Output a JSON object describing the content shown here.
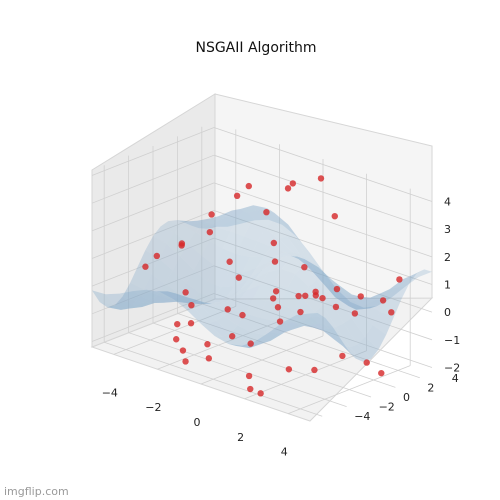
{
  "chart_data": {
    "type": "scatter",
    "title": "NSGAII Algorithm",
    "x_ticks": [
      "−4",
      "−2",
      "0",
      "2",
      "4"
    ],
    "y_ticks": [
      "−4",
      "−2",
      "0",
      "2",
      "4"
    ],
    "z_ticks": [
      "−2",
      "−1",
      "0",
      "1",
      "2",
      "3",
      "4"
    ],
    "xlim": [
      -5,
      5
    ],
    "ylim": [
      -5,
      5
    ],
    "zlim": [
      -2.2,
      4.2
    ],
    "grid": true,
    "surface_color": "#7ea6c8",
    "point_color": "#d62728",
    "points": [
      {
        "x": -4.9,
        "y": -0.8,
        "z": 0.0
      },
      {
        "x": -4.6,
        "y": -0.4,
        "z": 0.4
      },
      {
        "x": -4.3,
        "y": 1.1,
        "z": 0.6
      },
      {
        "x": -3.9,
        "y": 0.4,
        "z": 0.9
      },
      {
        "x": -3.6,
        "y": 2.3,
        "z": 1.7
      },
      {
        "x": -3.1,
        "y": 3.5,
        "z": 2.3
      },
      {
        "x": -2.9,
        "y": 4.1,
        "z": 2.6
      },
      {
        "x": -3.0,
        "y": -0.9,
        "z": -0.4
      },
      {
        "x": -2.6,
        "y": -2.3,
        "z": -1.2
      },
      {
        "x": -2.2,
        "y": -3.1,
        "z": -1.5
      },
      {
        "x": -1.8,
        "y": -2.6,
        "z": -0.9
      },
      {
        "x": -1.5,
        "y": -3.8,
        "z": -1.6
      },
      {
        "x": -1.1,
        "y": -4.3,
        "z": -1.8
      },
      {
        "x": -0.6,
        "y": -3.4,
        "z": -1.2
      },
      {
        "x": -0.2,
        "y": -4.0,
        "z": -1.5
      },
      {
        "x": 0.2,
        "y": -2.8,
        "z": -0.8
      },
      {
        "x": -2.1,
        "y": 1.1,
        "z": 0.6
      },
      {
        "x": -1.4,
        "y": 0.6,
        "z": 0.3
      },
      {
        "x": -1.7,
        "y": 3.4,
        "z": 2.1
      },
      {
        "x": -1.1,
        "y": 4.1,
        "z": 3.0
      },
      {
        "x": -0.6,
        "y": 3.6,
        "z": 3.4
      },
      {
        "x": 0.3,
        "y": 4.3,
        "z": 3.7
      },
      {
        "x": 1.1,
        "y": 4.0,
        "z": 2.6
      },
      {
        "x": -0.3,
        "y": 1.6,
        "z": 1.0
      },
      {
        "x": 0.2,
        "y": 0.8,
        "z": 0.2
      },
      {
        "x": 0.6,
        "y": 2.4,
        "z": 0.9
      },
      {
        "x": 1.2,
        "y": 1.4,
        "z": 0.2
      },
      {
        "x": 1.6,
        "y": 2.1,
        "z": 0.1
      },
      {
        "x": 0.4,
        "y": 0.2,
        "z": 0.1
      },
      {
        "x": 0.9,
        "y": -0.3,
        "z": 0.0
      },
      {
        "x": 1.4,
        "y": 0.5,
        "z": 0.4
      },
      {
        "x": 1.9,
        "y": 1.0,
        "z": 0.6
      },
      {
        "x": 2.3,
        "y": 0.3,
        "z": 0.7
      },
      {
        "x": 2.1,
        "y": -0.6,
        "z": 0.2
      },
      {
        "x": 1.5,
        "y": -1.2,
        "z": -0.2
      },
      {
        "x": 2.6,
        "y": 1.5,
        "z": 0.8
      },
      {
        "x": 3.0,
        "y": 0.7,
        "z": 0.4
      },
      {
        "x": 3.3,
        "y": 2.2,
        "z": 0.6
      },
      {
        "x": 3.7,
        "y": 1.0,
        "z": 0.3
      },
      {
        "x": 4.1,
        "y": 2.6,
        "z": 0.6
      },
      {
        "x": 4.4,
        "y": 3.4,
        "z": 1.3
      },
      {
        "x": 4.7,
        "y": 2.2,
        "z": 0.4
      },
      {
        "x": 0.6,
        "y": -2.0,
        "z": -1.1
      },
      {
        "x": 1.2,
        "y": -3.2,
        "z": -1.9
      },
      {
        "x": 1.7,
        "y": -4.0,
        "z": -2.1
      },
      {
        "x": 2.4,
        "y": -4.4,
        "z": -2.0
      },
      {
        "x": 3.3,
        "y": -1.6,
        "z": -1.4
      },
      {
        "x": 3.8,
        "y": -0.2,
        "z": -1.0
      },
      {
        "x": 4.3,
        "y": 0.9,
        "z": -1.3
      },
      {
        "x": 4.8,
        "y": 1.2,
        "z": -1.6
      },
      {
        "x": -2.4,
        "y": -1.5,
        "z": -0.6
      },
      {
        "x": -0.9,
        "y": -1.2,
        "z": -0.4
      },
      {
        "x": 0.0,
        "y": -1.6,
        "z": -0.3
      },
      {
        "x": 2.8,
        "y": -2.8,
        "z": -1.3
      },
      {
        "x": -3.4,
        "y": 1.8,
        "z": 1.2
      },
      {
        "x": -0.8,
        "y": 2.4,
        "z": 1.4
      }
    ]
  },
  "watermark": "imgflip.com"
}
